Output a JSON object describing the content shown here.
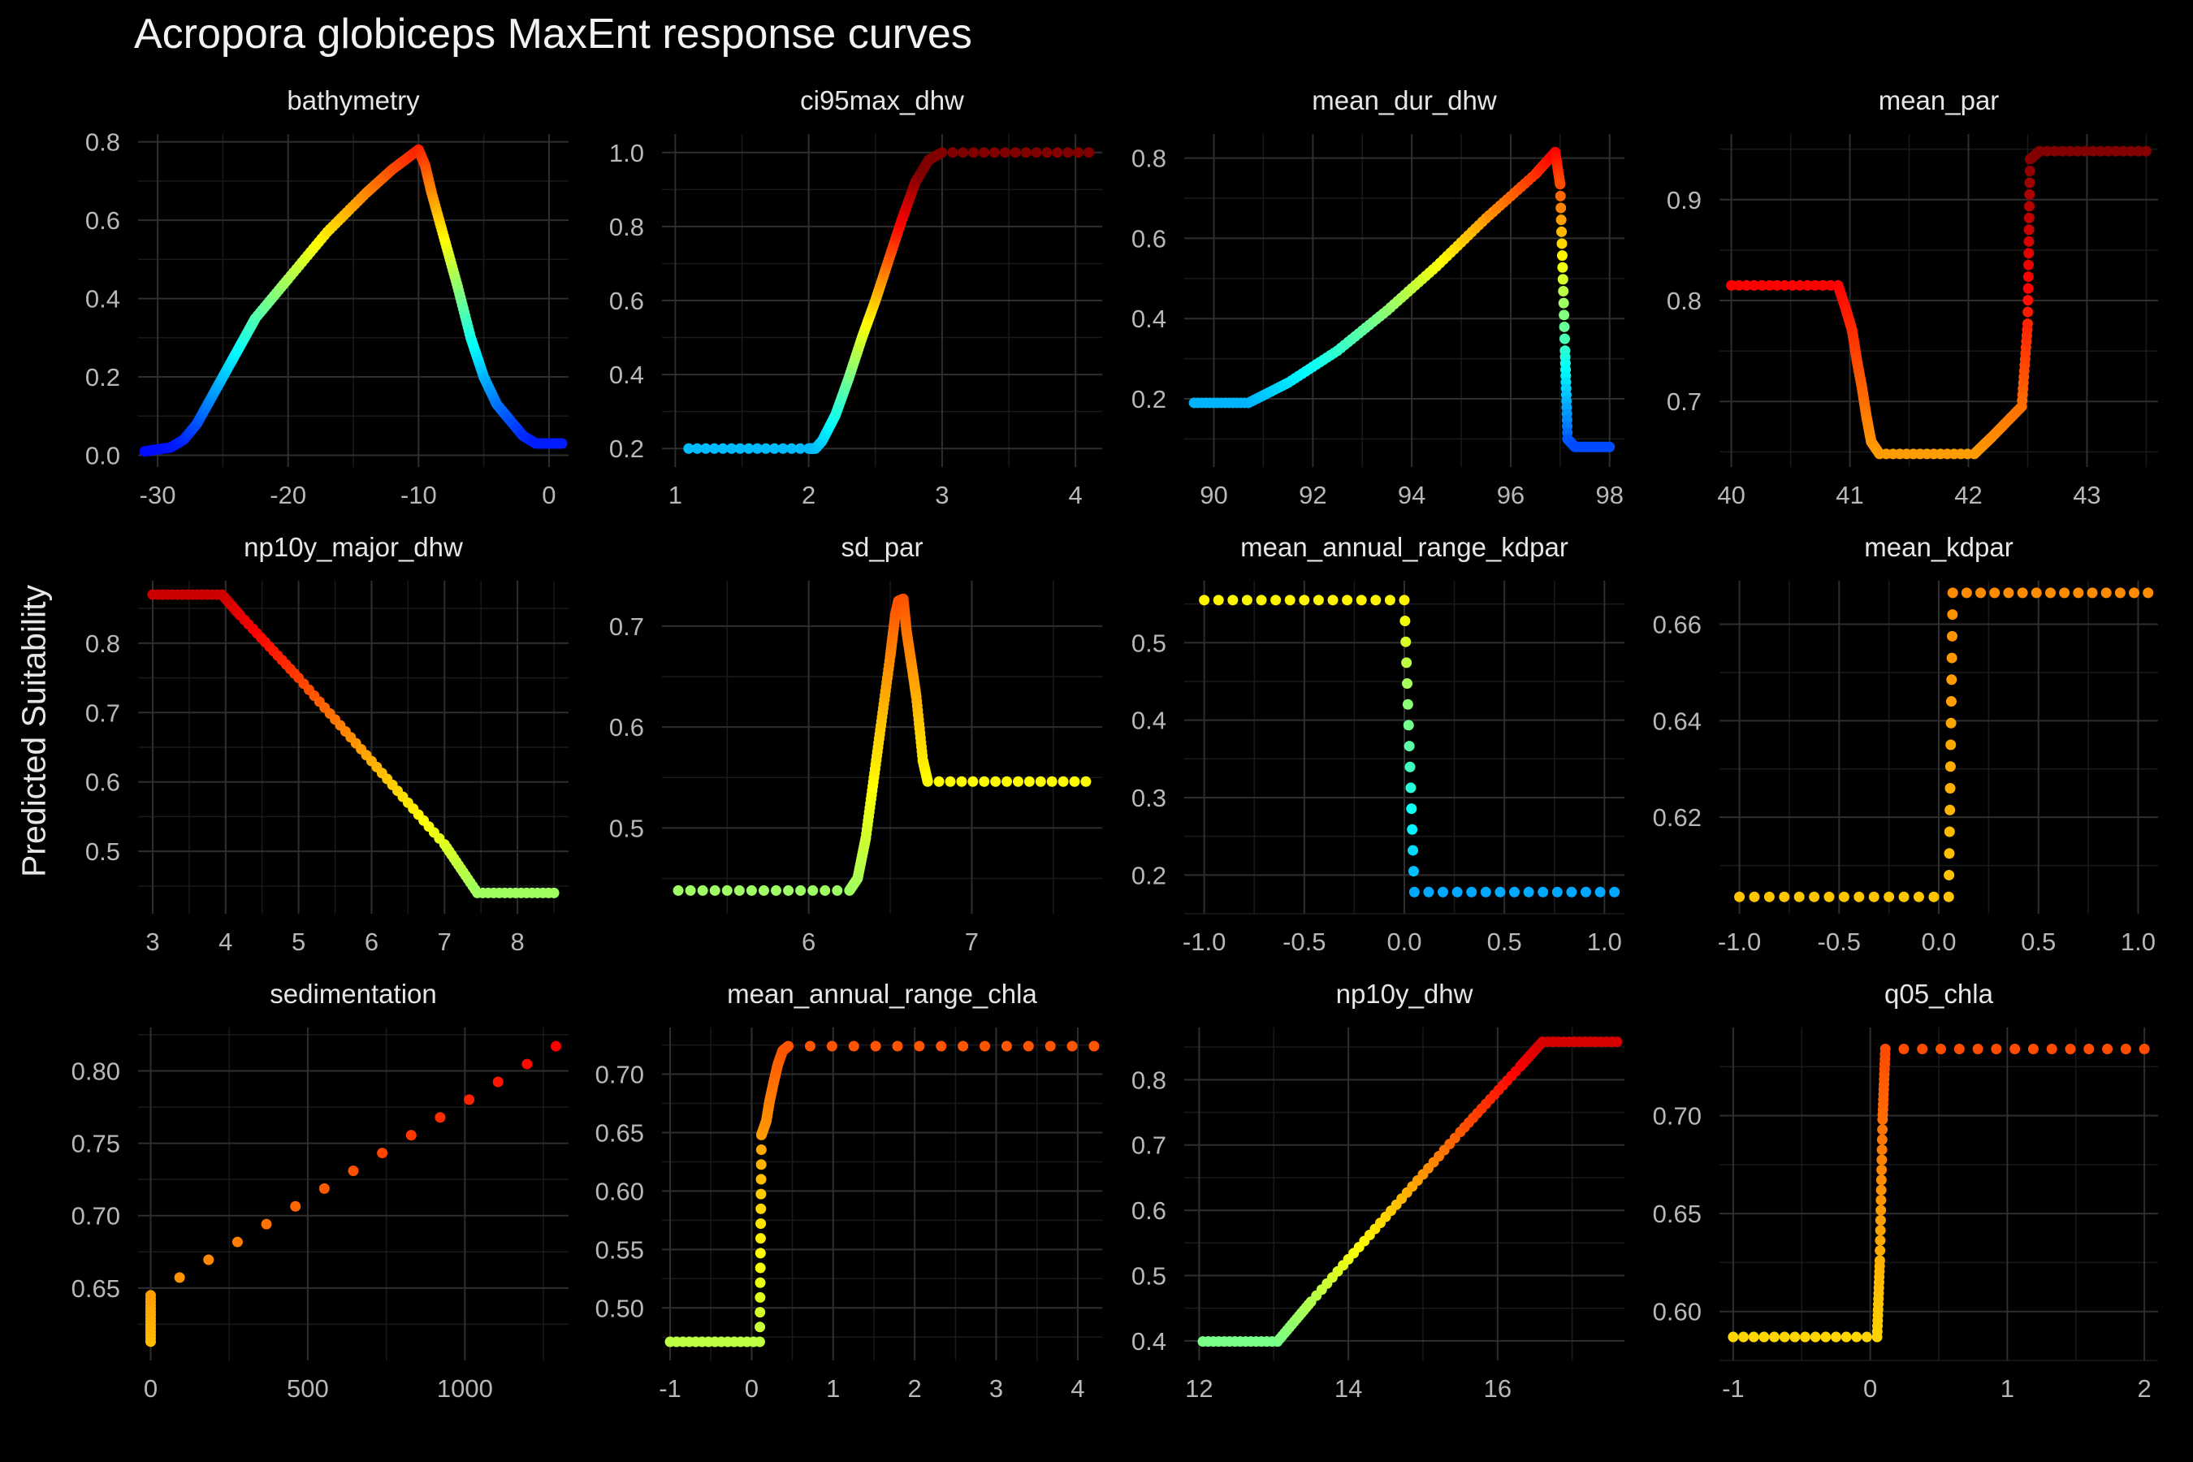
{
  "title": "Acropora globiceps MaxEnt response curves",
  "ylabel": "Predicted Suitability",
  "chart_data": {
    "type": "scatter",
    "colormap": [
      "#0000ff",
      "#0080ff",
      "#00ffff",
      "#80ff80",
      "#ffff00",
      "#ff8000",
      "#ff0000",
      "#800000"
    ],
    "panels": [
      {
        "name": "bathymetry",
        "xlim": [
          -31.5,
          1.5
        ],
        "ylim": [
          -0.03,
          0.82
        ],
        "xticks": [
          -30,
          -20,
          -10,
          0
        ],
        "xtick_labels": [
          "-30",
          "-20",
          "-10",
          "0"
        ],
        "yticks": [
          0,
          0.2,
          0.4,
          0.6,
          0.8
        ],
        "ytick_labels": [
          "0.0",
          "0.2",
          "0.4",
          "0.6",
          "0.8"
        ],
        "points": [
          [
            -31,
            0.01
          ],
          [
            -29,
            0.02
          ],
          [
            -28,
            0.04
          ],
          [
            -27,
            0.08
          ],
          [
            -26,
            0.14
          ],
          [
            -25,
            0.2
          ],
          [
            -24,
            0.26
          ],
          [
            -23,
            0.32
          ],
          [
            -22.5,
            0.35
          ],
          [
            -20,
            0.45
          ],
          [
            -17,
            0.57
          ],
          [
            -14,
            0.67
          ],
          [
            -12,
            0.73
          ],
          [
            -10,
            0.78
          ],
          [
            -9.5,
            0.74
          ],
          [
            -9,
            0.67
          ],
          [
            -8,
            0.55
          ],
          [
            -7,
            0.43
          ],
          [
            -6,
            0.3
          ],
          [
            -5,
            0.2
          ],
          [
            -4,
            0.13
          ],
          [
            -3,
            0.09
          ],
          [
            -2,
            0.05
          ],
          [
            -1,
            0.03
          ],
          [
            1,
            0.03
          ]
        ]
      },
      {
        "name": "ci95max_dhw",
        "xlim": [
          0.9,
          4.2
        ],
        "ylim": [
          0.15,
          1.05
        ],
        "xticks": [
          1,
          2,
          3,
          4
        ],
        "xtick_labels": [
          "1",
          "2",
          "3",
          "4"
        ],
        "yticks": [
          0.2,
          0.4,
          0.6,
          0.8,
          1.0
        ],
        "ytick_labels": [
          "0.2",
          "0.4",
          "0.6",
          "0.8",
          "1.0"
        ],
        "points": [
          [
            1.1,
            0.2
          ],
          [
            2.0,
            0.2
          ],
          [
            2.05,
            0.2
          ],
          [
            2.1,
            0.22
          ],
          [
            2.2,
            0.29
          ],
          [
            2.3,
            0.39
          ],
          [
            2.4,
            0.5
          ],
          [
            2.5,
            0.6
          ],
          [
            2.6,
            0.71
          ],
          [
            2.7,
            0.82
          ],
          [
            2.8,
            0.92
          ],
          [
            2.9,
            0.98
          ],
          [
            3.0,
            1.0
          ],
          [
            4.1,
            1.0
          ]
        ]
      },
      {
        "name": "mean_dur_dhw",
        "xlim": [
          89.4,
          98.3
        ],
        "ylim": [
          0.03,
          0.86
        ],
        "xticks": [
          90,
          92,
          94,
          96,
          98
        ],
        "xtick_labels": [
          "90",
          "92",
          "94",
          "96",
          "98"
        ],
        "yticks": [
          0.2,
          0.4,
          0.6,
          0.8
        ],
        "ytick_labels": [
          "0.2",
          "0.4",
          "0.6",
          "0.8"
        ],
        "points": [
          [
            89.6,
            0.19
          ],
          [
            90.7,
            0.19
          ],
          [
            91.5,
            0.24
          ],
          [
            92.5,
            0.32
          ],
          [
            93.5,
            0.42
          ],
          [
            94.5,
            0.53
          ],
          [
            95.5,
            0.65
          ],
          [
            96.5,
            0.76
          ],
          [
            96.9,
            0.815
          ],
          [
            97.0,
            0.735
          ],
          [
            97.1,
            0.32
          ],
          [
            97.15,
            0.1
          ],
          [
            97.3,
            0.08
          ],
          [
            98.0,
            0.08
          ]
        ]
      },
      {
        "name": "mean_par",
        "xlim": [
          39.9,
          43.6
        ],
        "ylim": [
          0.635,
          0.965
        ],
        "xticks": [
          40,
          41,
          42,
          43
        ],
        "xtick_labels": [
          "40",
          "41",
          "42",
          "43"
        ],
        "yticks": [
          0.7,
          0.8,
          0.9
        ],
        "ytick_labels": [
          "0.7",
          "0.8",
          "0.9"
        ],
        "points": [
          [
            40.0,
            0.815
          ],
          [
            40.9,
            0.815
          ],
          [
            40.97,
            0.79
          ],
          [
            41.02,
            0.77
          ],
          [
            41.06,
            0.74
          ],
          [
            41.1,
            0.715
          ],
          [
            41.14,
            0.685
          ],
          [
            41.18,
            0.66
          ],
          [
            41.25,
            0.648
          ],
          [
            42.05,
            0.648
          ],
          [
            42.2,
            0.665
          ],
          [
            42.45,
            0.695
          ],
          [
            42.5,
            0.777
          ],
          [
            42.52,
            0.94
          ],
          [
            42.6,
            0.948
          ],
          [
            43.5,
            0.948
          ]
        ]
      },
      {
        "name": "np10y_major_dhw",
        "xlim": [
          2.8,
          8.7
        ],
        "ylim": [
          0.41,
          0.89
        ],
        "xticks": [
          3,
          4,
          5,
          6,
          7,
          8
        ],
        "xtick_labels": [
          "3",
          "4",
          "5",
          "6",
          "7",
          "8"
        ],
        "yticks": [
          0.5,
          0.6,
          0.7,
          0.8
        ],
        "ytick_labels": [
          "0.5",
          "0.6",
          "0.7",
          "0.8"
        ],
        "points": [
          [
            3,
            0.87
          ],
          [
            3.95,
            0.87
          ],
          [
            4.2,
            0.84
          ],
          [
            5,
            0.75
          ],
          [
            6,
            0.63
          ],
          [
            7,
            0.51
          ],
          [
            7.45,
            0.44
          ],
          [
            8.5,
            0.44
          ]
        ]
      },
      {
        "name": "sd_par",
        "xlim": [
          5.1,
          7.8
        ],
        "ylim": [
          0.415,
          0.745
        ],
        "xticks": [
          6,
          7
        ],
        "xtick_labels": [
          "6",
          "7"
        ],
        "yticks": [
          0.5,
          0.6,
          0.7
        ],
        "ytick_labels": [
          "0.5",
          "0.6",
          "0.7"
        ],
        "points": [
          [
            5.2,
            0.438
          ],
          [
            6.25,
            0.438
          ],
          [
            6.3,
            0.45
          ],
          [
            6.35,
            0.49
          ],
          [
            6.4,
            0.55
          ],
          [
            6.45,
            0.61
          ],
          [
            6.5,
            0.67
          ],
          [
            6.53,
            0.71
          ],
          [
            6.55,
            0.725
          ],
          [
            6.58,
            0.727
          ],
          [
            6.6,
            0.695
          ],
          [
            6.63,
            0.663
          ],
          [
            6.66,
            0.63
          ],
          [
            6.7,
            0.567
          ],
          [
            6.73,
            0.546
          ],
          [
            7.7,
            0.546
          ]
        ]
      },
      {
        "name": "mean_annual_range_kdpar",
        "xlim": [
          -1.1,
          1.1
        ],
        "ylim": [
          0.15,
          0.58
        ],
        "xticks": [
          -1,
          -0.5,
          0,
          0.5,
          1
        ],
        "xtick_labels": [
          "-1.0",
          "-0.5",
          "0.0",
          "0.5",
          "1.0"
        ],
        "yticks": [
          0.2,
          0.3,
          0.4,
          0.5
        ],
        "ytick_labels": [
          "0.2",
          "0.3",
          "0.4",
          "0.5"
        ],
        "points": [
          [
            -1,
            0.555
          ],
          [
            0,
            0.555
          ],
          [
            0.05,
            0.178
          ],
          [
            1.05,
            0.178
          ]
        ]
      },
      {
        "name": "mean_kdpar",
        "xlim": [
          -1.1,
          1.1
        ],
        "ylim": [
          0.6,
          0.669
        ],
        "xticks": [
          -1,
          -0.5,
          0,
          0.5,
          1
        ],
        "xtick_labels": [
          "-1.0",
          "-0.5",
          "0.0",
          "0.5",
          "1.0"
        ],
        "yticks": [
          0.62,
          0.64,
          0.66
        ],
        "ytick_labels": [
          "0.62",
          "0.64",
          "0.66"
        ],
        "points": [
          [
            -1,
            0.6035
          ],
          [
            0.05,
            0.6035
          ],
          [
            0.07,
            0.6665
          ],
          [
            1.05,
            0.6665
          ]
        ]
      },
      {
        "name": "sedimentation",
        "xlim": [
          -40,
          1330
        ],
        "ylim": [
          0.6,
          0.83
        ],
        "xticks": [
          0,
          500,
          1000
        ],
        "xtick_labels": [
          "0",
          "500",
          "1000"
        ],
        "yticks": [
          0.65,
          0.7,
          0.75,
          0.8
        ],
        "ytick_labels": [
          "0.65",
          "0.70",
          "0.75",
          "0.80"
        ],
        "points": [
          [
            0,
            0.613
          ],
          [
            0,
            0.645
          ],
          [
            1290,
            0.817
          ]
        ]
      },
      {
        "name": "mean_annual_range_chla",
        "xlim": [
          -1.1,
          4.3
        ],
        "ylim": [
          0.455,
          0.74
        ],
        "xticks": [
          -1,
          0,
          1,
          2,
          3,
          4
        ],
        "xtick_labels": [
          "-1",
          "0",
          "1",
          "2",
          "3",
          "4"
        ],
        "yticks": [
          0.5,
          0.55,
          0.6,
          0.65,
          0.7
        ],
        "ytick_labels": [
          "0.50",
          "0.55",
          "0.60",
          "0.65",
          "0.70"
        ],
        "points": [
          [
            -1,
            0.471
          ],
          [
            0.1,
            0.471
          ],
          [
            0.12,
            0.648
          ],
          [
            0.18,
            0.66
          ],
          [
            0.22,
            0.677
          ],
          [
            0.27,
            0.693
          ],
          [
            0.32,
            0.708
          ],
          [
            0.38,
            0.72
          ],
          [
            0.45,
            0.724
          ],
          [
            4.2,
            0.724
          ]
        ]
      },
      {
        "name": "np10y_dhw",
        "xlim": [
          11.8,
          17.7
        ],
        "ylim": [
          0.37,
          0.88
        ],
        "xticks": [
          12,
          14,
          16
        ],
        "xtick_labels": [
          "12",
          "14",
          "16"
        ],
        "yticks": [
          0.4,
          0.5,
          0.6,
          0.7,
          0.8
        ],
        "ytick_labels": [
          "0.4",
          "0.5",
          "0.6",
          "0.7",
          "0.8"
        ],
        "points": [
          [
            12.05,
            0.399
          ],
          [
            13.05,
            0.399
          ],
          [
            13.5,
            0.46
          ],
          [
            14.5,
            0.59
          ],
          [
            15.5,
            0.72
          ],
          [
            16.3,
            0.82
          ],
          [
            16.6,
            0.858
          ],
          [
            17.6,
            0.858
          ]
        ]
      },
      {
        "name": "q05_chla",
        "xlim": [
          -1.1,
          2.1
        ],
        "ylim": [
          0.575,
          0.745
        ],
        "xticks": [
          -1,
          0,
          1,
          2
        ],
        "xtick_labels": [
          "-1",
          "0",
          "1",
          "2"
        ],
        "yticks": [
          0.6,
          0.65,
          0.7
        ],
        "ytick_labels": [
          "0.60",
          "0.65",
          "0.70"
        ],
        "points": [
          [
            -1,
            0.587
          ],
          [
            0.05,
            0.587
          ],
          [
            0.07,
            0.626
          ],
          [
            0.09,
            0.698
          ],
          [
            0.11,
            0.734
          ],
          [
            2,
            0.734
          ]
        ]
      }
    ]
  }
}
